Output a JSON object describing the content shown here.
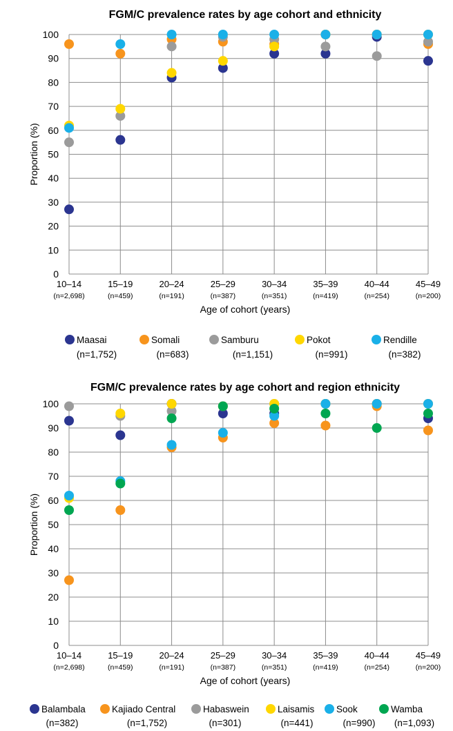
{
  "chart_data": [
    {
      "type": "scatter",
      "title": "FGM/C prevalence rates by age cohort and ethnicity",
      "xlabel": "Age of cohort (years)",
      "ylabel": "Proportion (%)",
      "ylim": [
        0,
        100
      ],
      "yticks": [
        0,
        10,
        20,
        30,
        40,
        50,
        60,
        70,
        80,
        90,
        100
      ],
      "grid": true,
      "categories": [
        "10–14",
        "15–19",
        "20–24",
        "25–29",
        "30–34",
        "35–39",
        "40–44",
        "45–49"
      ],
      "category_n": [
        "(n=2,698)",
        "(n=459)",
        "(n=191)",
        "(n=387)",
        "(n=351)",
        "(n=419)",
        "(n=254)",
        "(n=200)"
      ],
      "legend_position": "bottom",
      "series": [
        {
          "name": "Maasai",
          "n": "(n=1,752)",
          "color": "#2b3590",
          "values": [
            27,
            56,
            82,
            86,
            92,
            92,
            99,
            89
          ]
        },
        {
          "name": "Somali",
          "n": "(n=683)",
          "color": "#f7941d",
          "values": [
            96,
            92,
            98,
            97,
            96,
            100,
            100,
            96
          ]
        },
        {
          "name": "Samburu",
          "n": "(n=1,151)",
          "color": "#9b9b9b",
          "values": [
            55,
            66,
            95,
            99,
            98,
            95,
            91,
            97
          ]
        },
        {
          "name": "Pokot",
          "n": "(n=991)",
          "color": "#ffd700",
          "values": [
            62,
            69,
            84,
            89,
            95,
            100,
            100,
            100
          ]
        },
        {
          "name": "Rendille",
          "n": "(n=382)",
          "color": "#1ab0e8",
          "values": [
            61,
            96,
            100,
            100,
            100,
            100,
            100,
            100
          ]
        }
      ]
    },
    {
      "type": "scatter",
      "title": "FGM/C prevalence rates by age cohort and region ethnicity",
      "xlabel": "Age of cohort (years)",
      "ylabel": "Proportion (%)",
      "ylim": [
        0,
        100
      ],
      "yticks": [
        0,
        10,
        20,
        30,
        40,
        50,
        60,
        70,
        80,
        90,
        100
      ],
      "grid": true,
      "categories": [
        "10–14",
        "15–19",
        "20–24",
        "25–29",
        "30–34",
        "35–39",
        "40–44",
        "45–49"
      ],
      "category_n": [
        "(n=2,698)",
        "(n=459)",
        "(n=191)",
        "(n=387)",
        "(n=351)",
        "(n=419)",
        "(n=254)",
        "(n=200)"
      ],
      "legend_position": "bottom",
      "series": [
        {
          "name": "Balambala",
          "n": "(n=382)",
          "color": "#2b3590",
          "values": [
            93,
            87,
            100,
            96,
            96,
            100,
            100,
            94
          ]
        },
        {
          "name": "Kajiado Central",
          "n": "(n=1,752)",
          "color": "#f7941d",
          "values": [
            27,
            56,
            82,
            86,
            92,
            91,
            99,
            89
          ]
        },
        {
          "name": "Habaswein",
          "n": "(n=301)",
          "color": "#9b9b9b",
          "values": [
            99,
            95,
            97,
            99,
            100,
            100,
            100,
            100
          ]
        },
        {
          "name": "Laisamis",
          "n": "(n=441)",
          "color": "#ffd700",
          "values": [
            61,
            96,
            100,
            99,
            100,
            100,
            100,
            100
          ]
        },
        {
          "name": "Sook",
          "n": "(n=990)",
          "color": "#1ab0e8",
          "values": [
            62,
            68,
            83,
            88,
            95,
            100,
            100,
            100
          ]
        },
        {
          "name": "Wamba",
          "n": "(n=1,093)",
          "color": "#00a651",
          "values": [
            56,
            67,
            94,
            99,
            98,
            96,
            90,
            96
          ]
        }
      ]
    }
  ]
}
